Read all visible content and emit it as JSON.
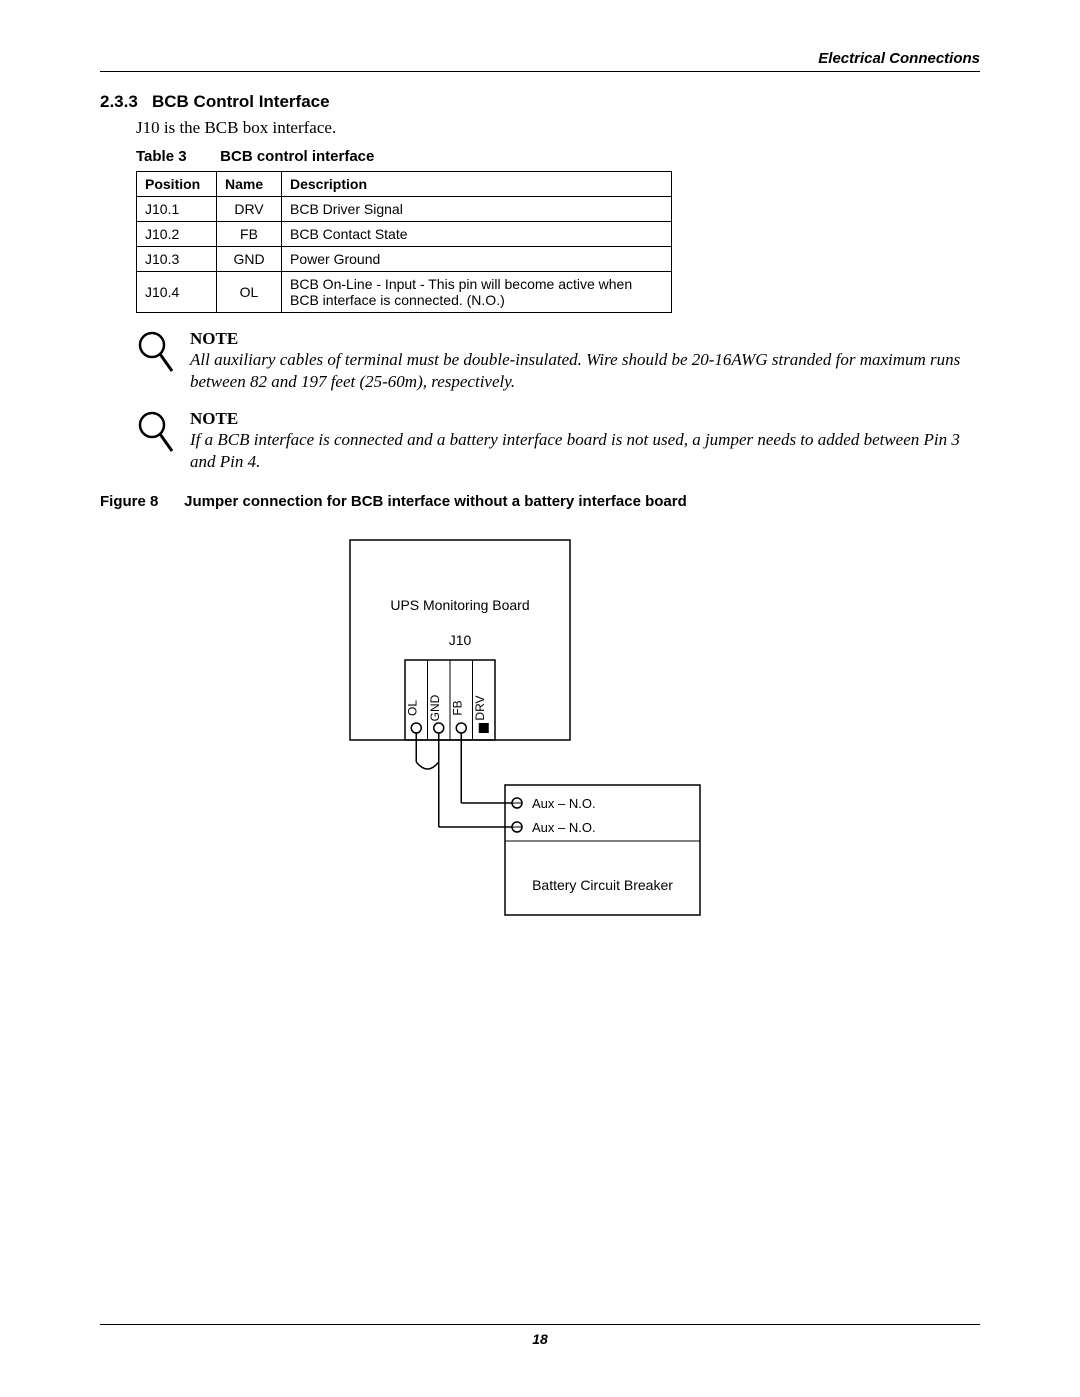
{
  "header": {
    "section_label": "Electrical Connections"
  },
  "section": {
    "number": "2.3.3",
    "title": "BCB Control Interface",
    "intro": "J10 is the BCB box interface."
  },
  "table": {
    "caption_num": "Table 3",
    "caption_title": "BCB control interface",
    "columns": [
      "Position",
      "Name",
      "Description"
    ],
    "rows": [
      [
        "J10.1",
        "DRV",
        "BCB Driver Signal"
      ],
      [
        "J10.2",
        "FB",
        "BCB Contact State"
      ],
      [
        "J10.3",
        "GND",
        "Power Ground"
      ],
      [
        "J10.4",
        "OL",
        "BCB On-Line - Input - This pin will become active when BCB interface is connected. (N.O.)"
      ]
    ]
  },
  "notes": [
    {
      "title": "NOTE",
      "body": "All auxiliary cables of terminal must be double-insulated. Wire should be 20-16AWG stranded for maximum runs between 82 and 197 feet (25-60m), respectively."
    },
    {
      "title": "NOTE",
      "body": "If a BCB interface is connected and a battery interface board is not used, a jumper needs to added between Pin 3 and Pin 4."
    }
  ],
  "figure": {
    "caption_num": "Figure 8",
    "caption_title": "Jumper connection for BCB interface without a battery interface board",
    "board_label": "UPS Monitoring Board",
    "connector_label": "J10",
    "pins": [
      "OL",
      "GND",
      "FB",
      "DRV"
    ],
    "aux1": "Aux – N.O.",
    "aux2": "Aux – N.O.",
    "breaker_label": "Battery Circuit Breaker",
    "stroke": "#000000",
    "stroke_width": 1.5,
    "font_family": "Arial",
    "pin_fontsize": 12,
    "label_fontsize": 14,
    "board_w": 220,
    "board_h": 200,
    "breaker_w": 195,
    "breaker_h": 130
  },
  "footer": {
    "page_number": "18"
  }
}
